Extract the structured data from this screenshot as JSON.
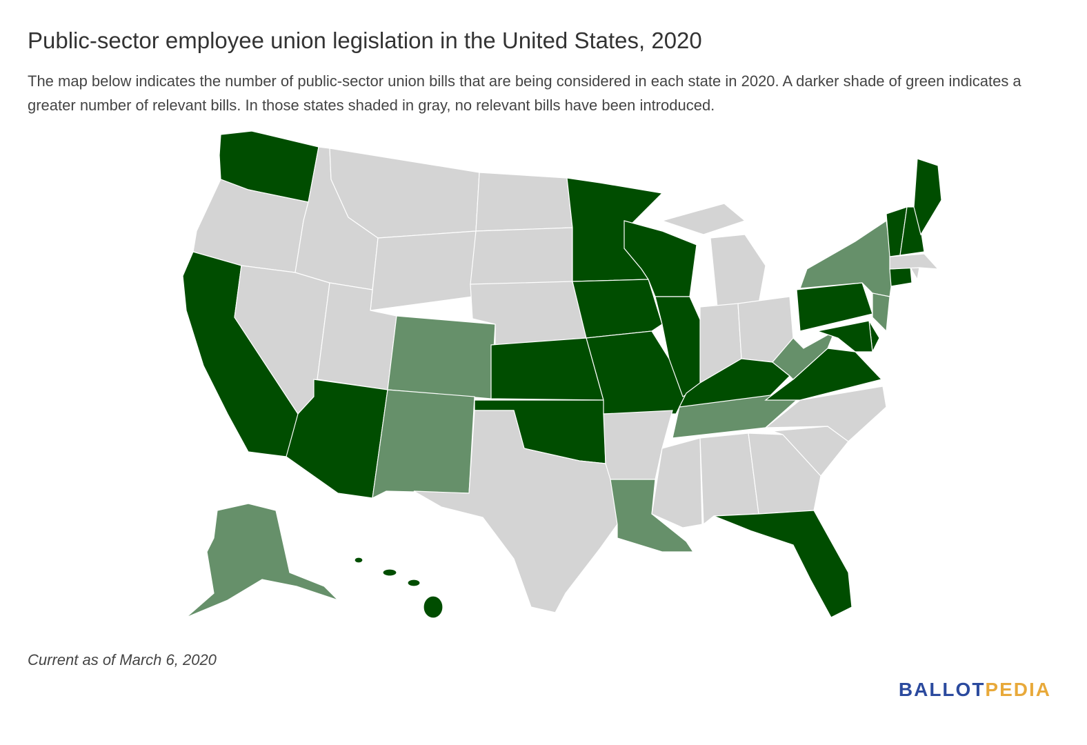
{
  "header": {
    "title": "Public-sector employee union legislation in the United States, 2020",
    "description": "The map below indicates the number of public-sector union bills that are being considered in each state in 2020. A darker shade of green indicates a greater number of relevant bills. In those states shaded in gray, no relevant bills have been introduced."
  },
  "footer": {
    "note": "Current as of March 6, 2020",
    "logo": {
      "first": "BALLOT",
      "second": "PEDIA"
    }
  }
}
